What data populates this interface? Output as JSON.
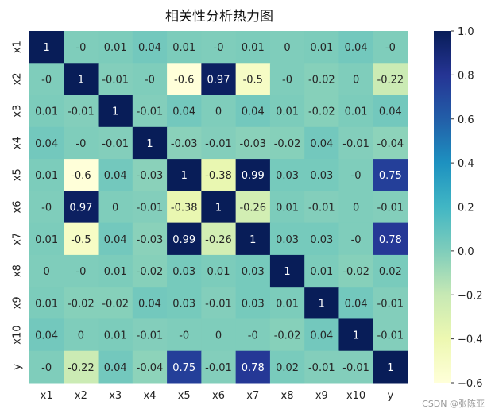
{
  "chart_data": {
    "type": "heatmap",
    "title": "相关性分析热力图",
    "xlabels": [
      "x1",
      "x2",
      "x3",
      "x4",
      "x5",
      "x6",
      "x7",
      "x8",
      "x9",
      "x10",
      "y"
    ],
    "ylabels": [
      "x1",
      "x2",
      "x3",
      "x4",
      "x5",
      "x6",
      "x7",
      "x8",
      "x9",
      "x10",
      "y"
    ],
    "values": [
      [
        1,
        0,
        0.01,
        0.04,
        0.01,
        0,
        0.01,
        0,
        0.01,
        0.04,
        0
      ],
      [
        0,
        1,
        -0.01,
        0,
        -0.6,
        0.97,
        -0.5,
        0,
        -0.02,
        0,
        -0.22
      ],
      [
        0.01,
        -0.01,
        1,
        -0.01,
        0.04,
        0,
        0.04,
        0.01,
        -0.02,
        0.01,
        0.04
      ],
      [
        0.04,
        0,
        -0.01,
        1,
        -0.03,
        -0.01,
        -0.03,
        -0.02,
        0.04,
        -0.01,
        -0.04
      ],
      [
        0.01,
        -0.6,
        0.04,
        -0.03,
        1,
        -0.38,
        0.99,
        0.03,
        0.03,
        0,
        0.75
      ],
      [
        0,
        0.97,
        0,
        -0.01,
        -0.38,
        1,
        -0.26,
        0.01,
        -0.01,
        0,
        -0.01
      ],
      [
        0.01,
        -0.5,
        0.04,
        -0.03,
        0.99,
        -0.26,
        1,
        0.03,
        0.03,
        0,
        0.78
      ],
      [
        0,
        0,
        0.01,
        -0.02,
        0.03,
        0.01,
        0.03,
        1,
        0.01,
        -0.02,
        0.02
      ],
      [
        0.01,
        -0.02,
        -0.02,
        0.04,
        0.03,
        -0.01,
        0.03,
        0.01,
        1,
        0.04,
        -0.01
      ],
      [
        0.04,
        0,
        0.01,
        -0.01,
        0,
        0,
        0,
        -0.02,
        0.04,
        1,
        -0.01
      ],
      [
        0,
        -0.22,
        0.04,
        -0.04,
        0.75,
        -0.01,
        0.78,
        0.02,
        -0.01,
        -0.01,
        1
      ]
    ],
    "colorbar": {
      "range": [
        -0.6,
        1.0
      ],
      "ticks": [
        "1.0",
        "0.8",
        "0.6",
        "0.4",
        "0.2",
        "0.0",
        "−0.2",
        "−0.4",
        "−0.6"
      ],
      "tick_values": [
        1.0,
        0.8,
        0.6,
        0.4,
        0.2,
        0.0,
        -0.2,
        -0.4,
        -0.6
      ]
    },
    "colormap": "YlGnBu"
  },
  "watermark": "CSDN @张陈亚"
}
